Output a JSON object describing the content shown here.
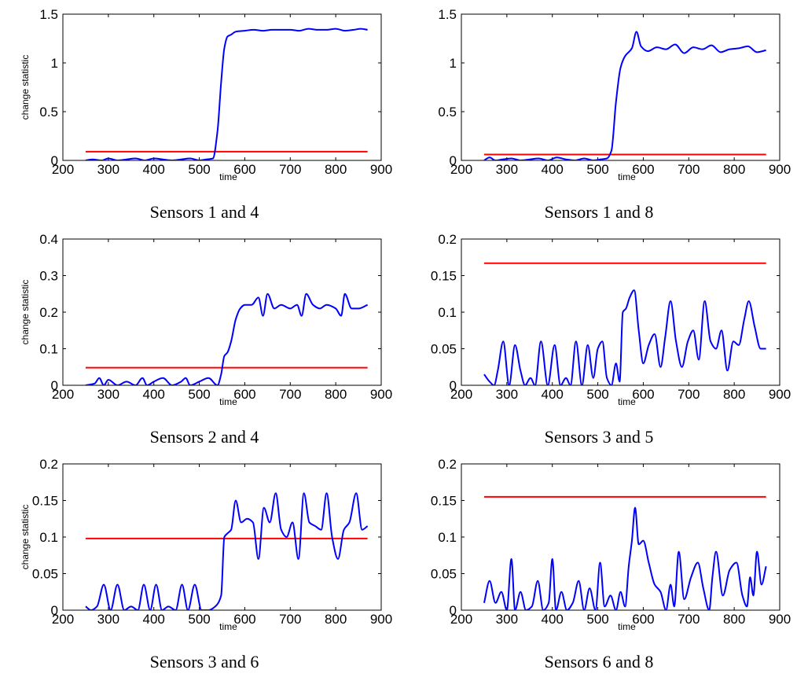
{
  "chart_data": [
    {
      "type": "line",
      "caption": "Sensors 1 and 4",
      "xlabel": "time",
      "ylabel": "change statistic",
      "xlim": [
        200,
        900
      ],
      "ylim": [
        0,
        1.5
      ],
      "xticks": [
        "200",
        "300",
        "400",
        "500",
        "600",
        "700",
        "800",
        "900"
      ],
      "yticks": [
        "0",
        "0.5",
        "1",
        "1.5"
      ],
      "xtick_values": [
        200,
        300,
        400,
        500,
        600,
        700,
        800,
        900
      ],
      "ytick_values": [
        0,
        0.5,
        1,
        1.5
      ],
      "threshold": {
        "x": [
          250,
          870
        ],
        "y": 0.09,
        "color": "#ff0000"
      },
      "series": [
        {
          "color": "#0000ff",
          "x": [
            250,
            265,
            285,
            300,
            320,
            340,
            360,
            380,
            400,
            420,
            440,
            460,
            480,
            500,
            515,
            530,
            540,
            548,
            555,
            562,
            570,
            580,
            600,
            620,
            640,
            660,
            680,
            700,
            720,
            740,
            760,
            780,
            800,
            820,
            840,
            855,
            870
          ],
          "y": [
            0,
            0.01,
            0,
            0.02,
            0,
            0.01,
            0.02,
            0,
            0.02,
            0.01,
            0,
            0.01,
            0.02,
            0,
            0.01,
            0.02,
            0.3,
            0.8,
            1.15,
            1.27,
            1.29,
            1.32,
            1.33,
            1.34,
            1.33,
            1.34,
            1.34,
            1.34,
            1.33,
            1.35,
            1.34,
            1.34,
            1.35,
            1.33,
            1.34,
            1.35,
            1.34
          ]
        }
      ]
    },
    {
      "type": "line",
      "caption": "Sensors 1 and 8",
      "xlabel": "time",
      "ylabel": "",
      "xlim": [
        200,
        900
      ],
      "ylim": [
        0,
        1.5
      ],
      "xticks": [
        "200",
        "300",
        "400",
        "500",
        "600",
        "700",
        "800",
        "900"
      ],
      "yticks": [
        "0",
        "0.5",
        "1",
        "1.5"
      ],
      "xtick_values": [
        200,
        300,
        400,
        500,
        600,
        700,
        800,
        900
      ],
      "ytick_values": [
        0,
        0.5,
        1,
        1.5
      ],
      "threshold": {
        "x": [
          250,
          870
        ],
        "y": 0.06,
        "color": "#ff0000"
      },
      "series": [
        {
          "color": "#0000ff",
          "x": [
            250,
            262,
            275,
            290,
            310,
            330,
            350,
            370,
            390,
            410,
            430,
            450,
            470,
            490,
            505,
            520,
            530,
            540,
            550,
            560,
            575,
            585,
            595,
            610,
            630,
            650,
            670,
            690,
            710,
            730,
            750,
            770,
            790,
            810,
            830,
            850,
            870
          ],
          "y": [
            0,
            0.03,
            0,
            0.01,
            0.02,
            0,
            0.01,
            0.02,
            0,
            0.03,
            0.01,
            0,
            0.02,
            0,
            0.01,
            0.02,
            0.1,
            0.6,
            0.95,
            1.07,
            1.15,
            1.32,
            1.17,
            1.12,
            1.16,
            1.14,
            1.19,
            1.1,
            1.16,
            1.14,
            1.18,
            1.11,
            1.14,
            1.15,
            1.17,
            1.11,
            1.13
          ]
        }
      ]
    },
    {
      "type": "line",
      "caption": "Sensors 2 and 4",
      "xlabel": "time",
      "ylabel": "change statistic",
      "xlim": [
        200,
        900
      ],
      "ylim": [
        0,
        0.4
      ],
      "xticks": [
        "200",
        "300",
        "400",
        "500",
        "600",
        "700",
        "800",
        "900"
      ],
      "yticks": [
        "0",
        "0.1",
        "0.2",
        "0.3",
        "0.4"
      ],
      "xtick_values": [
        200,
        300,
        400,
        500,
        600,
        700,
        800,
        900
      ],
      "ytick_values": [
        0,
        0.1,
        0.2,
        0.3,
        0.4
      ],
      "threshold": {
        "x": [
          250,
          870
        ],
        "y": 0.048,
        "color": "#ff0000"
      },
      "series": [
        {
          "color": "#0000ff",
          "x": [
            250,
            270,
            280,
            290,
            300,
            320,
            340,
            360,
            375,
            385,
            400,
            420,
            440,
            460,
            470,
            480,
            500,
            520,
            540,
            548,
            555,
            562,
            570,
            580,
            590,
            600,
            615,
            630,
            640,
            650,
            665,
            680,
            700,
            715,
            725,
            735,
            750,
            765,
            780,
            800,
            812,
            820,
            835,
            850,
            870
          ],
          "y": [
            0,
            0.005,
            0.02,
            0,
            0.015,
            0,
            0.01,
            0,
            0.02,
            0,
            0.01,
            0.02,
            0,
            0.01,
            0.02,
            0,
            0.01,
            0.02,
            0,
            0.03,
            0.08,
            0.09,
            0.12,
            0.18,
            0.21,
            0.22,
            0.22,
            0.24,
            0.19,
            0.25,
            0.21,
            0.22,
            0.21,
            0.22,
            0.19,
            0.25,
            0.22,
            0.21,
            0.22,
            0.21,
            0.19,
            0.25,
            0.21,
            0.21,
            0.22
          ]
        }
      ]
    },
    {
      "type": "line",
      "caption": "Sensors 3 and 5",
      "xlabel": "time",
      "ylabel": "",
      "xlim": [
        200,
        900
      ],
      "ylim": [
        0,
        0.2
      ],
      "xticks": [
        "200",
        "300",
        "400",
        "500",
        "600",
        "700",
        "800",
        "900"
      ],
      "yticks": [
        "0",
        "0.05",
        "0.1",
        "0.15",
        "0.2"
      ],
      "xtick_values": [
        200,
        300,
        400,
        500,
        600,
        700,
        800,
        900
      ],
      "ytick_values": [
        0,
        0.05,
        0.1,
        0.15,
        0.2
      ],
      "threshold": {
        "x": [
          250,
          870
        ],
        "y": 0.167,
        "color": "#ff0000"
      },
      "series": [
        {
          "color": "#0000ff",
          "x": [
            250,
            262,
            272,
            280,
            292,
            305,
            318,
            330,
            340,
            352,
            362,
            375,
            390,
            405,
            418,
            430,
            440,
            452,
            465,
            478,
            490,
            500,
            510,
            520,
            530,
            540,
            548,
            555,
            562,
            570,
            580,
            590,
            600,
            612,
            625,
            638,
            648,
            660,
            672,
            685,
            698,
            710,
            722,
            735,
            748,
            760,
            772,
            785,
            798,
            810,
            822,
            832,
            845,
            858,
            870
          ],
          "y": [
            0.015,
            0.005,
            0,
            0.02,
            0.06,
            0,
            0.055,
            0.02,
            0,
            0.01,
            0,
            0.06,
            0,
            0.055,
            0,
            0.01,
            0,
            0.06,
            0,
            0.055,
            0.01,
            0.05,
            0.06,
            0.01,
            0,
            0.03,
            0.005,
            0.1,
            0.105,
            0.12,
            0.13,
            0.075,
            0.03,
            0.055,
            0.07,
            0.025,
            0.065,
            0.115,
            0.06,
            0.025,
            0.06,
            0.075,
            0.035,
            0.115,
            0.06,
            0.05,
            0.075,
            0.02,
            0.06,
            0.055,
            0.09,
            0.115,
            0.08,
            0.05,
            0.05
          ]
        }
      ]
    },
    {
      "type": "line",
      "caption": "Sensors 3 and 6",
      "xlabel": "time",
      "ylabel": "change statistic",
      "xlim": [
        200,
        900
      ],
      "ylim": [
        0,
        0.2
      ],
      "xticks": [
        "200",
        "300",
        "400",
        "500",
        "600",
        "700",
        "800",
        "900"
      ],
      "yticks": [
        "0",
        "0.05",
        "0.1",
        "0.15",
        "0.2"
      ],
      "xtick_values": [
        200,
        300,
        400,
        500,
        600,
        700,
        800,
        900
      ],
      "ytick_values": [
        0,
        0.05,
        0.1,
        0.15,
        0.2
      ],
      "threshold": {
        "x": [
          250,
          870
        ],
        "y": 0.098,
        "color": "#ff0000"
      },
      "series": [
        {
          "color": "#0000ff",
          "x": [
            250,
            262,
            275,
            290,
            305,
            320,
            335,
            350,
            365,
            378,
            392,
            405,
            418,
            432,
            448,
            462,
            475,
            490,
            505,
            520,
            535,
            548,
            555,
            562,
            570,
            580,
            592,
            605,
            618,
            630,
            642,
            655,
            668,
            680,
            692,
            705,
            718,
            730,
            742,
            755,
            768,
            780,
            792,
            805,
            818,
            830,
            845,
            858,
            870
          ],
          "y": [
            0.005,
            0,
            0.005,
            0.035,
            0,
            0.035,
            0,
            0.005,
            0,
            0.035,
            0,
            0.035,
            0,
            0.005,
            0,
            0.035,
            0,
            0.035,
            0,
            0,
            0.005,
            0.02,
            0.1,
            0.105,
            0.11,
            0.15,
            0.12,
            0.125,
            0.12,
            0.07,
            0.14,
            0.12,
            0.16,
            0.11,
            0.1,
            0.12,
            0.07,
            0.16,
            0.12,
            0.115,
            0.11,
            0.16,
            0.1,
            0.07,
            0.11,
            0.12,
            0.16,
            0.11,
            0.115
          ]
        }
      ]
    },
    {
      "type": "line",
      "caption": "Sensors 6 and 8",
      "xlabel": "time",
      "ylabel": "",
      "xlim": [
        200,
        900
      ],
      "ylim": [
        0,
        0.2
      ],
      "xticks": [
        "200",
        "300",
        "400",
        "500",
        "600",
        "700",
        "800",
        "900"
      ],
      "yticks": [
        "0",
        "0.05",
        "0.1",
        "0.15",
        "0.2"
      ],
      "xtick_values": [
        200,
        300,
        400,
        500,
        600,
        700,
        800,
        900
      ],
      "ytick_values": [
        0,
        0.05,
        0.1,
        0.15,
        0.2
      ],
      "threshold": {
        "x": [
          250,
          870
        ],
        "y": 0.155,
        "color": "#ff0000"
      },
      "series": [
        {
          "color": "#0000ff",
          "x": [
            250,
            262,
            275,
            288,
            300,
            310,
            318,
            330,
            342,
            355,
            368,
            380,
            392,
            400,
            408,
            420,
            432,
            445,
            458,
            470,
            482,
            495,
            505,
            515,
            528,
            540,
            550,
            560,
            568,
            575,
            582,
            590,
            600,
            612,
            625,
            638,
            650,
            660,
            668,
            678,
            690,
            705,
            720,
            732,
            745,
            752,
            760,
            775,
            790,
            805,
            818,
            828,
            835,
            842,
            850,
            860,
            870
          ],
          "y": [
            0.01,
            0.04,
            0.01,
            0.025,
            0,
            0.07,
            0,
            0.025,
            0,
            0.005,
            0.04,
            0,
            0.01,
            0.07,
            0,
            0.025,
            0,
            0.01,
            0.04,
            0,
            0.03,
            0,
            0.065,
            0.005,
            0.02,
            0,
            0.025,
            0.005,
            0.06,
            0.095,
            0.14,
            0.09,
            0.095,
            0.065,
            0.035,
            0.025,
            0,
            0.035,
            0.005,
            0.08,
            0.015,
            0.045,
            0.065,
            0.03,
            0,
            0.045,
            0.08,
            0.02,
            0.055,
            0.065,
            0.02,
            0.005,
            0.045,
            0.02,
            0.08,
            0.035,
            0.06
          ]
        }
      ]
    }
  ]
}
